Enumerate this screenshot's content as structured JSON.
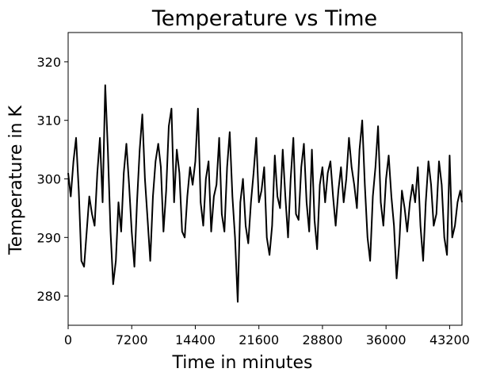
{
  "chart_data": {
    "type": "line",
    "title": "Temperature vs Time",
    "xlabel": "Time in minutes",
    "ylabel": "Temperature in K",
    "xlim": [
      0,
      44600
    ],
    "ylim": [
      275,
      325
    ],
    "xticks": [
      0,
      7200,
      14400,
      21600,
      28800,
      36000,
      43200
    ],
    "xtick_labels": [
      "0",
      "7200",
      "14400",
      "21600",
      "28800",
      "36000",
      "43200"
    ],
    "yticks": [
      280,
      290,
      300,
      310,
      320
    ],
    "ytick_labels": [
      "280",
      "290",
      "300",
      "310",
      "320"
    ],
    "grid": false,
    "line_color": "#000000",
    "series": [
      {
        "x": [
          0,
          300,
          600,
          900,
          1200,
          1500,
          1800,
          2100,
          2400,
          2700,
          3000,
          3300,
          3600,
          3900,
          4200,
          4500,
          4800,
          5100,
          5400,
          5700,
          6000,
          6300,
          6600,
          6900,
          7200,
          7500,
          7800,
          8100,
          8400,
          8700,
          9000,
          9300,
          9600,
          9900,
          10200,
          10500,
          10800,
          11100,
          11400,
          11700,
          12000,
          12300,
          12600,
          12900,
          13200,
          13500,
          13800,
          14100,
          14400,
          14700,
          15000,
          15300,
          15600,
          15900,
          16200,
          16500,
          16800,
          17100,
          17400,
          17700,
          18000,
          18300,
          18600,
          18900,
          19200,
          19500,
          19800,
          20100,
          20400,
          20700,
          21000,
          21300,
          21600,
          21900,
          22200,
          22500,
          22800,
          23100,
          23400,
          23700,
          24000,
          24300,
          24600,
          24900,
          25200,
          25500,
          25800,
          26100,
          26400,
          26700,
          27000,
          27300,
          27600,
          27900,
          28200,
          28500,
          28800,
          29100,
          29400,
          29700,
          30000,
          30300,
          30600,
          30900,
          31200,
          31500,
          31800,
          32100,
          32400,
          32700,
          33000,
          33300,
          33600,
          33900,
          34200,
          34500,
          34800,
          35100,
          35400,
          35700,
          36000,
          36300,
          36600,
          36900,
          37200,
          37500,
          37800,
          38100,
          38400,
          38700,
          39000,
          39300,
          39600,
          39900,
          40200,
          40500,
          40800,
          41100,
          41400,
          41700,
          42000,
          42300,
          42600,
          42900,
          43200,
          43500,
          43800,
          44100,
          44400,
          44600
        ],
        "y": [
          301,
          297,
          303,
          307,
          298,
          286,
          285,
          291,
          297,
          294,
          292,
          301,
          307,
          296,
          316,
          305,
          291,
          282,
          286,
          296,
          291,
          301,
          306,
          299,
          291,
          285,
          296,
          305,
          311,
          300,
          293,
          286,
          297,
          303,
          306,
          302,
          291,
          298,
          309,
          312,
          296,
          305,
          301,
          291,
          290,
          297,
          302,
          299,
          303,
          312,
          296,
          292,
          300,
          303,
          291,
          297,
          299,
          307,
          294,
          291,
          302,
          308,
          297,
          290,
          279,
          296,
          300,
          292,
          289,
          296,
          301,
          307,
          296,
          298,
          302,
          290,
          287,
          292,
          304,
          297,
          295,
          305,
          297,
          290,
          300,
          307,
          294,
          293,
          302,
          306,
          296,
          291,
          305,
          293,
          288,
          299,
          302,
          296,
          301,
          303,
          297,
          292,
          298,
          302,
          296,
          300,
          307,
          302,
          299,
          295,
          305,
          310,
          299,
          290,
          286,
          297,
          302,
          309,
          296,
          292,
          300,
          304,
          297,
          292,
          283,
          289,
          298,
          295,
          291,
          296,
          299,
          296,
          302,
          292,
          286,
          296,
          303,
          299,
          292,
          294,
          303,
          299,
          290,
          287,
          304,
          290,
          292,
          296,
          298,
          296
        ]
      }
    ]
  }
}
